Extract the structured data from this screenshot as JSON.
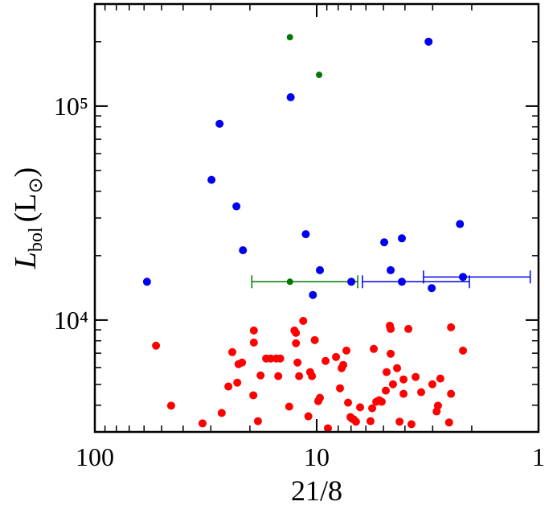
{
  "chart_data": {
    "type": "scatter",
    "x_label": "21/8",
    "y_label": [
      "L",
      "bol",
      "(L",
      "⊙",
      ")"
    ],
    "xlim": [
      100,
      1
    ],
    "ylim": [
      3000,
      300000
    ],
    "xscale": "log",
    "yscale": "log",
    "xticks": [
      100,
      10,
      1
    ],
    "x_minor_ticks": [
      90,
      80,
      70,
      60,
      50,
      40,
      30,
      20,
      9,
      8,
      7,
      6,
      5,
      4,
      3,
      2
    ],
    "yticks": [
      {
        "value": 10000,
        "label": "10⁴"
      },
      {
        "value": 100000,
        "label": "10⁵"
      }
    ],
    "y_minor_ticks": [
      3000,
      4000,
      5000,
      6000,
      7000,
      8000,
      9000,
      20000,
      30000,
      40000,
      50000,
      60000,
      70000,
      80000,
      90000,
      200000,
      300000
    ],
    "series": [
      {
        "color": "#ff0000",
        "size": 5,
        "x": [
          53.0,
          45.3,
          32.7,
          26.8,
          25.0,
          24.0,
          22.8,
          22.5,
          21.7,
          19.3,
          19.2,
          19.2,
          18.4,
          17.9,
          16.9,
          16.1,
          15.2,
          14.9,
          14.6,
          13.3,
          12.6,
          12.4,
          12.4,
          12.2,
          12.0,
          11.5,
          10.9,
          10.7,
          10.5,
          10.2,
          9.84,
          9.67,
          9.12,
          8.9,
          8.18,
          7.85,
          7.72,
          7.59,
          7.34,
          7.22,
          7.04,
          6.93,
          6.81,
          6.65,
          6.37,
          5.72,
          5.62,
          5.53,
          5.39,
          5.22,
          5.09,
          4.88,
          4.84,
          4.68,
          4.64,
          4.64,
          4.53,
          4.34,
          4.23,
          4.06,
          4.06,
          3.86,
          3.74,
          3.58,
          3.38,
          3.01,
          2.88,
          2.84,
          2.77,
          2.48,
          2.53,
          2.48,
          2.19
        ],
        "values": [
          7590,
          3980,
          3290,
          3680,
          4890,
          7080,
          5100,
          6220,
          6330,
          4450,
          8940,
          7850,
          3370,
          5510,
          6610,
          6610,
          6610,
          5470,
          6610,
          3940,
          8940,
          8710,
          7790,
          6330,
          5470,
          9910,
          3550,
          5710,
          5470,
          8060,
          4180,
          4330,
          6440,
          3120,
          6720,
          4800,
          5960,
          6170,
          7200,
          4110,
          3520,
          3460,
          3430,
          3350,
          3910,
          3370,
          3870,
          7330,
          4150,
          4220,
          4150,
          4680,
          5710,
          9410,
          9090,
          6960,
          5010,
          5960,
          3350,
          4520,
          5280,
          9090,
          3260,
          5420,
          4600,
          5010,
          3740,
          3980,
          5330,
          4520,
          3320,
          9250,
          7200
        ]
      },
      {
        "color": "#0000ee",
        "size": 5,
        "x": [
          58.2,
          29.8,
          27.4,
          23.0,
          21.5,
          13.1,
          11.2,
          10.4,
          9.67,
          6.98,
          4.96,
          4.64,
          4.13,
          4.13,
          3.13,
          3.03,
          2.26,
          2.19
        ],
        "values": [
          15100,
          45200,
          82700,
          34000,
          21200,
          110000,
          25200,
          13100,
          17100,
          15100,
          23100,
          17100,
          24100,
          15100,
          200000,
          14100,
          28100,
          15900
        ]
      },
      {
        "color": "#007700",
        "size": 4,
        "x": [
          13.2,
          9.75,
          13.2
        ],
        "values": [
          210000,
          140000,
          15100
        ]
      }
    ],
    "error_bars": [
      {
        "color": "#007700",
        "y": 15100,
        "x_lo": 19.6,
        "x_hi": 6.53
      },
      {
        "color": "#0000ee",
        "y": 15100,
        "x_lo": 6.22,
        "x_hi": 2.05
      },
      {
        "color": "#0000ee",
        "y": 15900,
        "x_lo": 3.3,
        "x_hi": 1.09
      }
    ]
  }
}
